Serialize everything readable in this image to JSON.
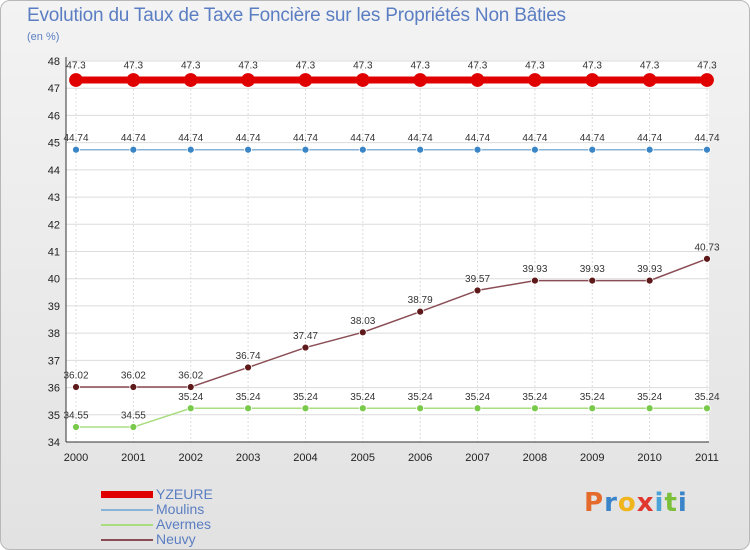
{
  "header": {
    "title": "Evolution du Taux de Taxe Foncière sur les Propriétés Non Bâties",
    "subtitle": "(en %)"
  },
  "logo": {
    "text": "Proxiti",
    "colors": [
      "#e46b2c",
      "#3a84c9",
      "#f0b41c",
      "#e0382f",
      "#4aa3d8",
      "#7cbf3a",
      "#3a84c9"
    ]
  },
  "chart_data": {
    "type": "line",
    "title": "Evolution du Taux de Taxe Foncière sur les Propriétés Non Bâties",
    "ylabel": "(en %)",
    "xlabel": "",
    "x": [
      "2000",
      "2001",
      "2002",
      "2003",
      "2004",
      "2005",
      "2006",
      "2007",
      "2008",
      "2009",
      "2010",
      "2011"
    ],
    "ylim": [
      34,
      48
    ],
    "yticks": [
      34,
      35,
      36,
      37,
      38,
      39,
      40,
      41,
      42,
      43,
      44,
      45,
      46,
      47,
      48
    ],
    "grid": true,
    "legend_position": "bottom-left",
    "series": [
      {
        "name": "YZEURE",
        "color": "#e00000",
        "width": 7,
        "marker_r": 6.5,
        "marker_fill": "#e00000",
        "values": [
          47.3,
          47.3,
          47.3,
          47.3,
          47.3,
          47.3,
          47.3,
          47.3,
          47.3,
          47.3,
          47.3,
          47.3
        ],
        "labels": [
          "47.3",
          "47.3",
          "47.3",
          "47.3",
          "47.3",
          "47.3",
          "47.3",
          "47.3",
          "47.3",
          "47.3",
          "47.3",
          "47.3"
        ]
      },
      {
        "name": "Moulins",
        "color": "#8ab3d8",
        "width": 1.5,
        "marker_r": 3.5,
        "marker_fill": "#3a85c6",
        "values": [
          44.74,
          44.74,
          44.74,
          44.74,
          44.74,
          44.74,
          44.74,
          44.74,
          44.74,
          44.74,
          44.74,
          44.74
        ],
        "labels": [
          "44.74",
          "44.74",
          "44.74",
          "44.74",
          "44.74",
          "44.74",
          "44.74",
          "44.74",
          "44.74",
          "44.74",
          "44.74",
          "44.74"
        ]
      },
      {
        "name": "Avermes",
        "color": "#a9dd80",
        "width": 1.5,
        "marker_r": 3.5,
        "marker_fill": "#79c94a",
        "values": [
          34.55,
          34.55,
          35.24,
          35.24,
          35.24,
          35.24,
          35.24,
          35.24,
          35.24,
          35.24,
          35.24,
          35.24
        ],
        "labels": [
          "34.55",
          "34.55",
          "35.24",
          "35.24",
          "35.24",
          "35.24",
          "35.24",
          "35.24",
          "35.24",
          "35.24",
          "35.24",
          "35.24"
        ]
      },
      {
        "name": "Neuvy",
        "color": "#8a4d55",
        "width": 1.5,
        "marker_r": 3.5,
        "marker_fill": "#5e1a1a",
        "values": [
          36.02,
          36.02,
          36.02,
          36.74,
          37.47,
          38.03,
          38.79,
          39.57,
          39.93,
          39.93,
          39.93,
          40.73
        ],
        "labels": [
          "36.02",
          "36.02",
          "36.02",
          "36.74",
          "37.47",
          "38.03",
          "38.79",
          "39.57",
          "39.93",
          "39.93",
          "39.93",
          "40.73"
        ]
      }
    ]
  }
}
